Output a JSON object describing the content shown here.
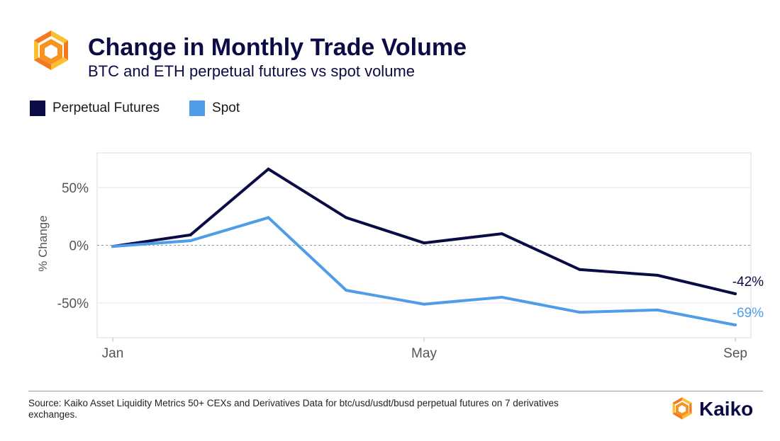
{
  "header": {
    "title": "Change in Monthly Trade Volume",
    "subtitle": "BTC and ETH perpetual futures vs spot volume"
  },
  "colors": {
    "navy": "#0b0b45",
    "blue": "#4f9ce9",
    "orange_light": "#fcc02e",
    "orange_dark": "#f37a21"
  },
  "legend": [
    {
      "label": "Perpetual Futures",
      "color": "#0b0b45"
    },
    {
      "label": "Spot",
      "color": "#4f9ce9"
    }
  ],
  "chart_data": {
    "type": "line",
    "ylabel": "% Change",
    "xlabel": "",
    "x": [
      0,
      1,
      2,
      3,
      4,
      5,
      6,
      7,
      8
    ],
    "xticks": [
      {
        "label": "Jan",
        "x": 0
      },
      {
        "label": "May",
        "x": 4
      },
      {
        "label": "Sep",
        "x": 8
      }
    ],
    "xlim": [
      -0.2,
      8.2
    ],
    "yticks": [
      {
        "label": "50%",
        "value": 50
      },
      {
        "label": "0%",
        "value": 0
      },
      {
        "label": "-50%",
        "value": -50
      }
    ],
    "ylim": [
      -80,
      80
    ],
    "grid": true,
    "series": [
      {
        "name": "Perpetual Futures",
        "color": "#0b0b45",
        "values": [
          -1,
          9,
          66,
          24,
          2,
          10,
          -21,
          -26,
          -42
        ],
        "end_label": "-42%"
      },
      {
        "name": "Spot",
        "color": "#4f9ce9",
        "values": [
          -1,
          4,
          24,
          -39,
          -51,
          -45,
          -58,
          -56,
          -69
        ],
        "end_label": "-69%"
      }
    ]
  },
  "footer": {
    "source": "Source: Kaiko Asset Liquidity Metrics 50+ CEXs and Derivatives Data for btc/usd/usdt/busd perpetual futures on  7 derivatives exchanges.",
    "brand": "Kaiko"
  }
}
